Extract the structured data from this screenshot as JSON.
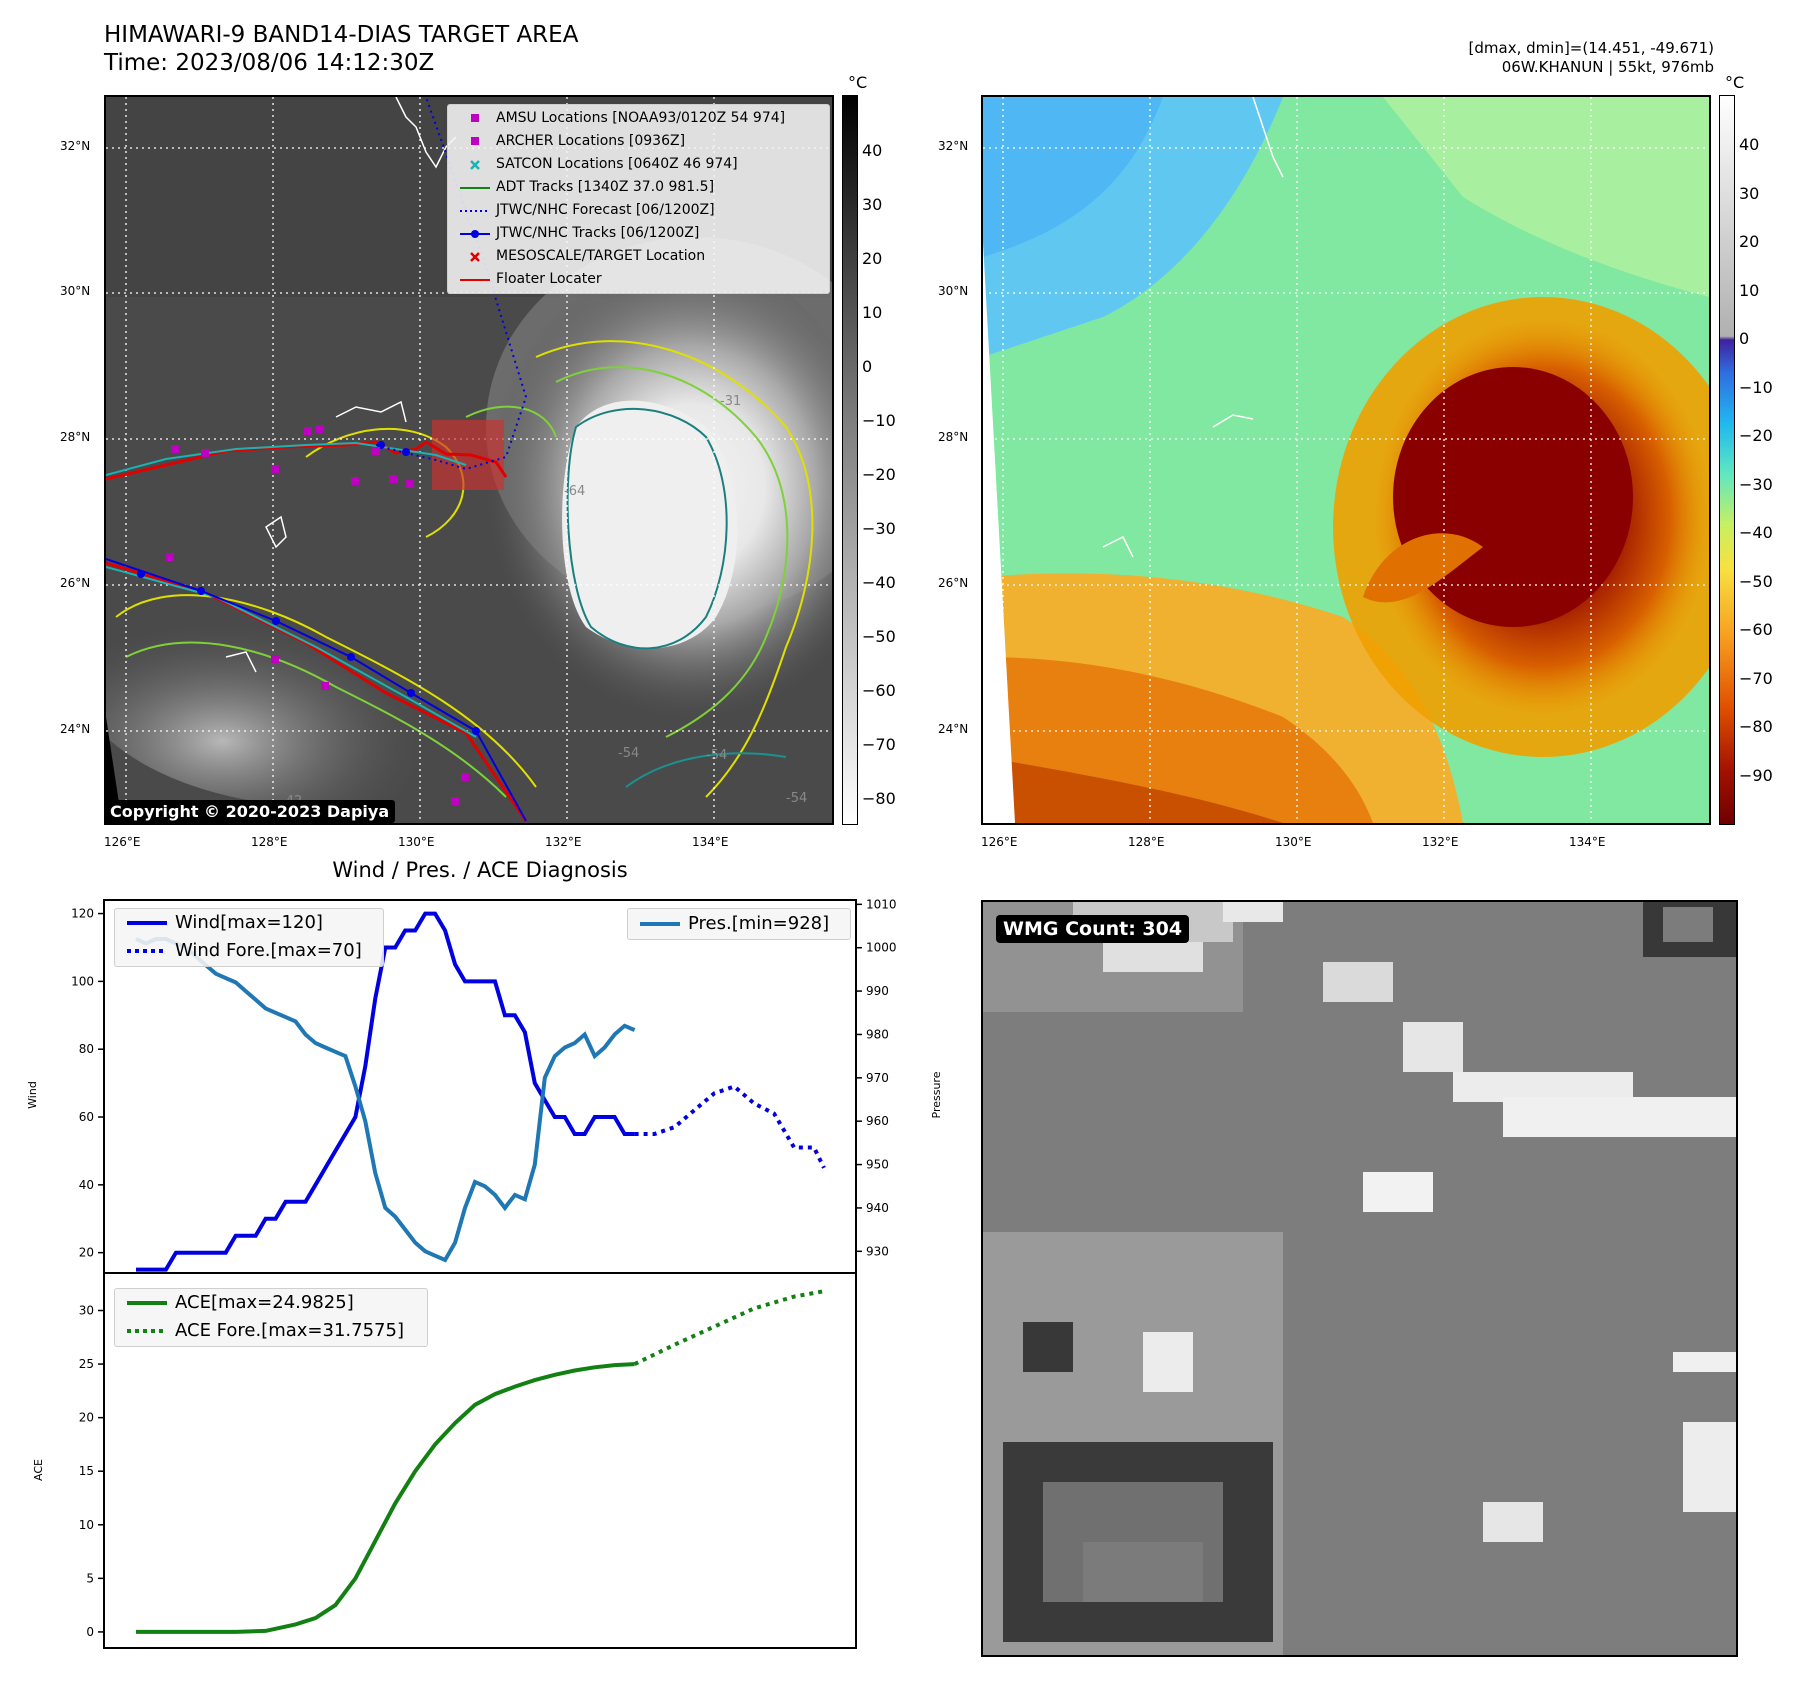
{
  "header": {
    "title_line1": "HIMAWARI-9 BAND14-DIAS TARGET AREA",
    "title_line2": "Time: 2023/08/06 14:12:30Z",
    "right_line1": "[dmax, dmin]=(14.451, -49.671)",
    "right_line2": "06W.KHANUN | 55kt, 976mb"
  },
  "map_left": {
    "lat_labels": [
      "32°N",
      "30°N",
      "28°N",
      "26°N",
      "24°N"
    ],
    "lon_labels": [
      "126°E",
      "128°E",
      "130°E",
      "132°E",
      "134°E"
    ],
    "contour_labels": [
      "-31",
      "-64",
      "-54",
      "-54",
      "-54",
      "-42"
    ],
    "copyright": "Copyright © 2020-2023 Dapiya",
    "colorbar_unit": "°C",
    "colorbar_ticks": [
      "40",
      "30",
      "20",
      "10",
      "0",
      "−10",
      "−20",
      "−30",
      "−40",
      "−50",
      "−60",
      "−70",
      "−80"
    ],
    "legend": [
      {
        "label": "AMSU Locations [NOAA93/0120Z 54 974]",
        "symbol": "square",
        "color": "#c000c0"
      },
      {
        "label": "ARCHER Locations [0936Z]",
        "symbol": "square",
        "color": "#c000c0"
      },
      {
        "label": "SATCON Locations [0640Z 46 974]",
        "symbol": "x",
        "color": "#19b3b3"
      },
      {
        "label": "ADT Tracks [1340Z 37.0 981.5]",
        "symbol": "line",
        "color": "#138013"
      },
      {
        "label": "JTWC/NHC Forecast [06/1200Z]",
        "symbol": "dotted",
        "color": "#0000e0"
      },
      {
        "label": "JTWC/NHC Tracks [06/1200Z]",
        "symbol": "line-dot",
        "color": "#0000e0"
      },
      {
        "label": "MESOSCALE/TARGET Location",
        "symbol": "x",
        "color": "#e00000"
      },
      {
        "label": "Floater Locater",
        "symbol": "line",
        "color": "#e00000"
      }
    ]
  },
  "map_right": {
    "lat_labels": [
      "32°N",
      "30°N",
      "28°N",
      "26°N",
      "24°N"
    ],
    "lon_labels": [
      "126°E",
      "128°E",
      "130°E",
      "132°E",
      "134°E"
    ],
    "colorbar_unit": "°C",
    "colorbar_ticks": [
      "40",
      "30",
      "20",
      "10",
      "0",
      "−10",
      "−20",
      "−30",
      "−40",
      "−50",
      "−60",
      "−70",
      "−80",
      "−90"
    ]
  },
  "wmg_panel": {
    "label": "WMG Count: 304"
  },
  "chart_data": [
    {
      "type": "line",
      "title": "Wind / Pres. / ACE Diagnosis",
      "ylabel": "Wind",
      "y2label": "Pressure",
      "ylim": [
        14,
        124
      ],
      "y2lim": [
        925,
        1011
      ],
      "yticks": [
        "20",
        "40",
        "60",
        "80",
        "100",
        "120"
      ],
      "y2ticks": [
        "930",
        "940",
        "950",
        "960",
        "970",
        "980",
        "990",
        "1000",
        "1010"
      ],
      "x": [
        0,
        1,
        2,
        3,
        4,
        5,
        6,
        7,
        8,
        9,
        10,
        11,
        12,
        13,
        14,
        15,
        16,
        17,
        18,
        19,
        20,
        21,
        22,
        23,
        24,
        25,
        26,
        27,
        28,
        29,
        30,
        31,
        32,
        33,
        34,
        35,
        36,
        37,
        38,
        39,
        40,
        41,
        42,
        43,
        44,
        45,
        46,
        47,
        48,
        49,
        50,
        51,
        52,
        53,
        54,
        55,
        56,
        57,
        58,
        59,
        60,
        61,
        62,
        63,
        64,
        65,
        66,
        67,
        68,
        69
      ],
      "series": [
        {
          "name": "Wind[max=120]",
          "axis": "left",
          "color": "#0000e0",
          "style": "solid",
          "x": [
            0,
            1,
            2,
            3,
            4,
            5,
            6,
            7,
            8,
            9,
            10,
            11,
            12,
            13,
            14,
            15,
            16,
            17,
            18,
            19,
            20,
            21,
            22,
            23,
            24,
            25,
            26,
            27,
            28,
            29,
            30,
            31,
            32,
            33,
            34,
            35,
            36,
            37,
            38,
            39,
            40,
            41,
            42,
            43,
            44,
            45,
            46,
            47,
            48,
            49,
            50
          ],
          "values": [
            15,
            15,
            15,
            15,
            20,
            20,
            20,
            20,
            20,
            20,
            25,
            25,
            25,
            30,
            30,
            35,
            35,
            35,
            40,
            45,
            50,
            55,
            60,
            75,
            95,
            110,
            110,
            115,
            115,
            120,
            120,
            115,
            105,
            100,
            100,
            100,
            100,
            90,
            90,
            85,
            70,
            65,
            60,
            60,
            55,
            55,
            60,
            60,
            60,
            55,
            55
          ]
        },
        {
          "name": "Wind Fore.[max=70]",
          "axis": "left",
          "color": "#0000e0",
          "style": "dotted",
          "x": [
            50,
            52,
            54,
            56,
            58,
            60,
            62,
            64,
            66,
            68,
            69
          ],
          "values": [
            55,
            55,
            57,
            62,
            67,
            69,
            64,
            61,
            51,
            51,
            45
          ]
        },
        {
          "name": "Pres.[min=928]",
          "axis": "right",
          "color": "#1f77b4",
          "style": "solid",
          "x": [
            0,
            1,
            2,
            3,
            4,
            5,
            6,
            7,
            8,
            9,
            10,
            11,
            12,
            13,
            14,
            15,
            16,
            17,
            18,
            19,
            20,
            21,
            22,
            23,
            24,
            25,
            26,
            27,
            28,
            29,
            30,
            31,
            32,
            33,
            34,
            35,
            36,
            37,
            38,
            39,
            40,
            41,
            42,
            43,
            44,
            45,
            46,
            47,
            48,
            49,
            50
          ],
          "values": [
            1002,
            1001,
            1002,
            1002,
            1001,
            1000,
            998,
            996,
            994,
            993,
            992,
            990,
            988,
            986,
            985,
            984,
            983,
            980,
            978,
            977,
            976,
            975,
            968,
            960,
            948,
            940,
            938,
            935,
            932,
            930,
            929,
            928,
            932,
            940,
            946,
            945,
            943,
            940,
            943,
            942,
            950,
            970,
            975,
            977,
            978,
            980,
            975,
            977,
            980,
            982,
            981
          ]
        }
      ]
    },
    {
      "type": "line",
      "ylabel": "ACE",
      "ylim": [
        -1.5,
        33.5
      ],
      "yticks": [
        "0",
        "5",
        "10",
        "15",
        "20",
        "25",
        "30"
      ],
      "series": [
        {
          "name": "ACE[max=24.9825]",
          "color": "#138013",
          "style": "solid",
          "x": [
            0,
            10,
            13,
            16,
            18,
            20,
            22,
            24,
            26,
            28,
            30,
            32,
            34,
            36,
            38,
            40,
            42,
            44,
            46,
            48,
            50
          ],
          "values": [
            0,
            0,
            0.1,
            0.7,
            1.3,
            2.5,
            5.0,
            8.5,
            12.0,
            15.0,
            17.5,
            19.5,
            21.2,
            22.2,
            22.9,
            23.5,
            24.0,
            24.4,
            24.7,
            24.9,
            25.0
          ]
        },
        {
          "name": "ACE Fore.[max=31.7575]",
          "color": "#138013",
          "style": "dotted",
          "x": [
            50,
            54,
            58,
            62,
            66,
            69
          ],
          "values": [
            25.0,
            26.8,
            28.5,
            30.2,
            31.3,
            31.8
          ]
        }
      ]
    }
  ]
}
